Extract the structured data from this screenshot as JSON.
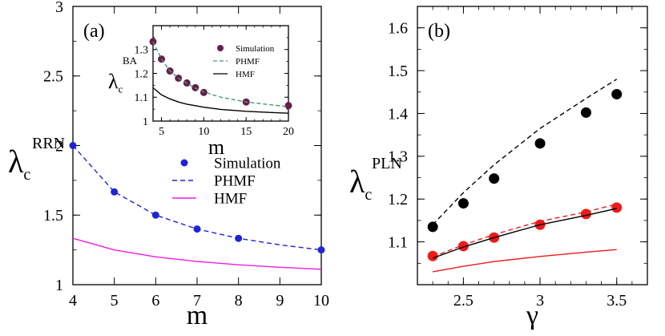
{
  "chart_data": [
    {
      "id": "a",
      "panel_label": "(a)",
      "type": "line",
      "xlabel": "m",
      "ylabel": "λ",
      "ylabel_sub": "c",
      "ylabel_sup": "RRN",
      "xlim": [
        4,
        10
      ],
      "ylim": [
        1,
        3
      ],
      "x_ticks": [
        4,
        5,
        6,
        7,
        8,
        9,
        10
      ],
      "y_ticks": [
        1,
        1.5,
        2,
        2.5,
        3
      ],
      "y_tick_labels": [
        "1",
        "1.5",
        "2",
        "2.5",
        "3"
      ],
      "legend_position": "middle-right",
      "series": [
        {
          "name": "Simulation",
          "kind": "scatter",
          "color": "#1f24d6",
          "x": [
            4,
            5,
            6,
            7,
            8,
            10
          ],
          "y": [
            2.0,
            1.667,
            1.5,
            1.4,
            1.333,
            1.25
          ]
        },
        {
          "name": "PHMF",
          "kind": "dashed",
          "color": "#1f24d6",
          "x": [
            4,
            5,
            6,
            7,
            8,
            9,
            10
          ],
          "y": [
            2.0,
            1.667,
            1.5,
            1.4,
            1.333,
            1.286,
            1.25
          ]
        },
        {
          "name": "HMF",
          "kind": "solid",
          "color": "#ee1ee6",
          "x": [
            4,
            5,
            6,
            7,
            8,
            9,
            10
          ],
          "y": [
            1.333,
            1.25,
            1.2,
            1.167,
            1.143,
            1.125,
            1.111
          ]
        }
      ]
    },
    {
      "id": "inset",
      "type": "line",
      "xlabel": "m",
      "ylabel": "λ",
      "ylabel_sub": "c",
      "ylabel_sup": "BA",
      "xlim": [
        4,
        20
      ],
      "ylim": [
        1,
        1.4
      ],
      "x_ticks": [
        5,
        10,
        15,
        20
      ],
      "y_ticks": [
        1,
        1.1,
        1.2,
        1.3
      ],
      "y_tick_labels": [
        "1",
        "1.1",
        "1.2",
        "1.3"
      ],
      "legend_position": "top-right",
      "series": [
        {
          "name": "Simulation",
          "kind": "scatter",
          "color": "#6a1d4a",
          "x": [
            4,
            5,
            6,
            7,
            8,
            9,
            10,
            15,
            20
          ],
          "y": [
            1.333,
            1.26,
            1.21,
            1.18,
            1.16,
            1.14,
            1.12,
            1.08,
            1.065
          ]
        },
        {
          "name": "PHMF",
          "kind": "dashed",
          "color": "#3e9b78",
          "x": [
            4,
            5,
            6,
            7,
            8,
            9,
            10,
            12,
            15,
            18,
            20
          ],
          "y": [
            1.333,
            1.26,
            1.21,
            1.18,
            1.158,
            1.138,
            1.122,
            1.1,
            1.08,
            1.068,
            1.06
          ]
        },
        {
          "name": "HMF",
          "kind": "solid",
          "color": "#000000",
          "x": [
            4,
            5,
            6,
            7,
            8,
            10,
            12,
            15,
            18,
            20
          ],
          "y": [
            1.14,
            1.11,
            1.093,
            1.08,
            1.071,
            1.058,
            1.049,
            1.041,
            1.036,
            1.033
          ]
        }
      ]
    },
    {
      "id": "b",
      "panel_label": "(b)",
      "type": "line",
      "xlabel": "γ",
      "ylabel": "λ",
      "ylabel_sub": "c",
      "ylabel_sup": "PLN",
      "xlim": [
        2.2,
        3.7
      ],
      "ylim": [
        1.0,
        1.65
      ],
      "x_ticks": [
        2.5,
        3,
        3.5
      ],
      "y_ticks": [
        1.1,
        1.2,
        1.3,
        1.4,
        1.5,
        1.6
      ],
      "y_tick_labels": [
        "1.1",
        "1.2",
        "1.3",
        "1.4",
        "1.5",
        "1.6"
      ],
      "series": [
        {
          "kind": "scatter",
          "color": "#000000",
          "x": [
            2.3,
            2.5,
            2.7,
            3.0,
            3.3,
            3.5
          ],
          "y": [
            1.135,
            1.19,
            1.248,
            1.33,
            1.402,
            1.445
          ]
        },
        {
          "kind": "dashed",
          "color": "#000000",
          "x": [
            2.3,
            2.5,
            2.7,
            3.0,
            3.3,
            3.5
          ],
          "y": [
            1.14,
            1.215,
            1.28,
            1.365,
            1.435,
            1.48
          ]
        },
        {
          "kind": "scatter",
          "color": "#ee1b1b",
          "x": [
            2.3,
            2.5,
            2.7,
            3.0,
            3.3,
            3.5
          ],
          "y": [
            1.067,
            1.09,
            1.11,
            1.14,
            1.165,
            1.18
          ]
        },
        {
          "kind": "dashed",
          "color": "#ee1b1b",
          "x": [
            2.3,
            2.5,
            2.7,
            3.0,
            3.3,
            3.5
          ],
          "y": [
            1.065,
            1.093,
            1.117,
            1.148,
            1.17,
            1.188
          ]
        },
        {
          "kind": "solid",
          "color": "#000000",
          "x": [
            2.3,
            2.5,
            2.7,
            3.0,
            3.3,
            3.5
          ],
          "y": [
            1.062,
            1.088,
            1.11,
            1.14,
            1.162,
            1.178
          ]
        },
        {
          "kind": "solid",
          "color": "#ee1b1b",
          "x": [
            2.3,
            2.5,
            2.7,
            3.0,
            3.3,
            3.5
          ],
          "y": [
            1.03,
            1.043,
            1.054,
            1.066,
            1.076,
            1.082
          ]
        }
      ]
    }
  ]
}
